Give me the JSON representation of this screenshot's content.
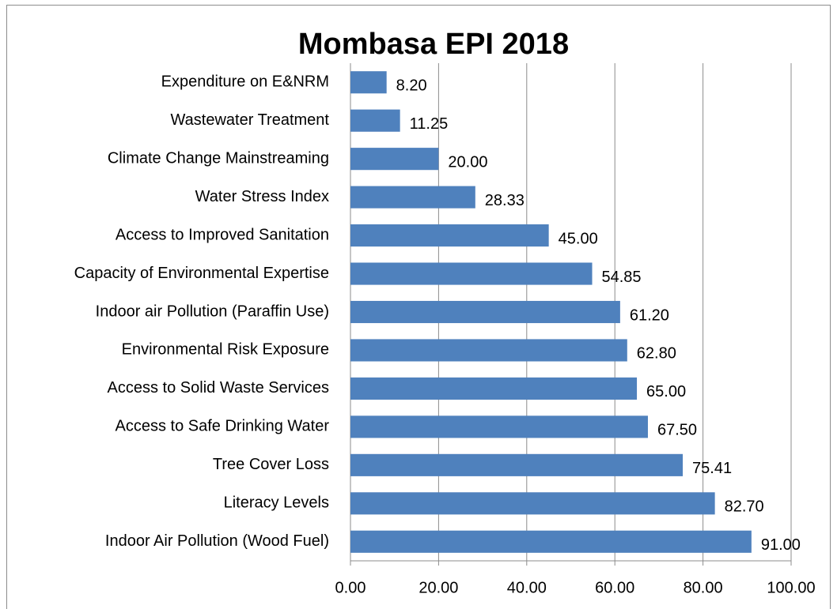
{
  "chart_data": {
    "type": "bar",
    "title": "Mombasa EPI 2018",
    "categories": [
      "Expenditure on E&NRM",
      "Wastewater Treatment",
      "Climate Change Mainstreaming",
      "Water Stress Index",
      "Access to Improved Sanitation",
      "Capacity of Environmental Expertise",
      "Indoor air Pollution (Paraffin Use)",
      "Environmental Risk Exposure",
      "Access to Solid Waste Services",
      "Access to Safe Drinking Water",
      "Tree Cover Loss",
      "Literacy Levels",
      "Indoor Air Pollution (Wood Fuel)"
    ],
    "values": [
      8.2,
      11.25,
      20,
      28.33,
      45,
      54.85,
      61.2,
      62.8,
      65,
      67.5,
      75.41,
      82.7,
      91
    ],
    "value_labels": [
      "8.20",
      "11.25",
      "20.00",
      "28.33",
      "45.00",
      "54.85",
      "61.20",
      "62.80",
      "65.00",
      "67.50",
      "75.41",
      "82.70",
      "91.00"
    ],
    "color": "#4f81bd",
    "xlim": [
      0,
      100
    ],
    "xticks": [
      {
        "value": 0,
        "label": "0.00"
      },
      {
        "value": 20,
        "label": "20.00"
      },
      {
        "value": 40,
        "label": "40.00"
      },
      {
        "value": 60,
        "label": "60.00"
      },
      {
        "value": 80,
        "label": "80.00"
      },
      {
        "value": 100,
        "label": "100.00"
      }
    ],
    "grid": true
  }
}
